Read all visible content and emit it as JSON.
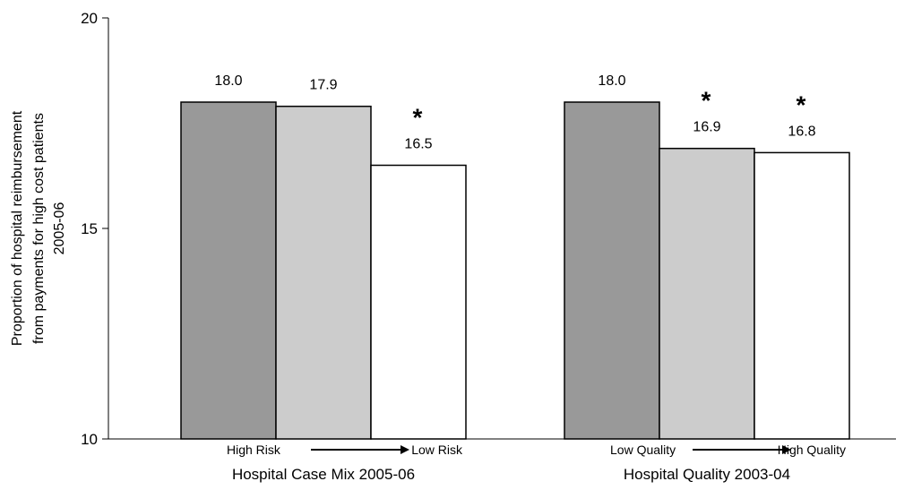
{
  "chart_data": {
    "type": "bar",
    "ylabel": [
      "Proportion of hospital reimbursement",
      "from payments for high cost patients",
      "2005-06"
    ],
    "ylim": [
      10,
      20
    ],
    "yticks": [
      "10",
      "15",
      "20"
    ],
    "groups": [
      {
        "label": "Hospital Case Mix 2005-06",
        "range_start": "High Risk",
        "range_end": "Low Risk",
        "values": [
          18.0,
          17.9,
          16.5
        ],
        "value_labels": [
          "18.0",
          "17.9",
          "16.5"
        ],
        "significant": [
          false,
          false,
          true
        ]
      },
      {
        "label": "Hospital Quality 2003-04",
        "range_start": "Low Quality",
        "range_end": "High Quality",
        "values": [
          18.0,
          16.9,
          16.8
        ],
        "value_labels": [
          "18.0",
          "16.9",
          "16.8"
        ],
        "significant": [
          false,
          true,
          true
        ]
      }
    ],
    "significance_marker": "*",
    "bar_colors": [
      "#999999",
      "#cccccc",
      "#ffffff"
    ],
    "grid": false,
    "legend": "none"
  }
}
